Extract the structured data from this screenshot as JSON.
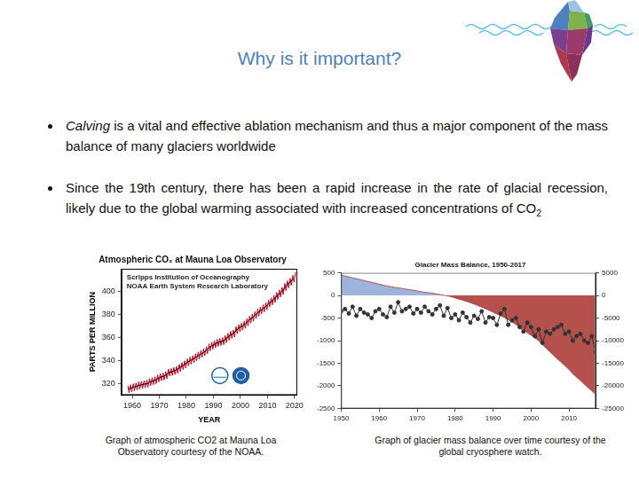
{
  "slide": {
    "title": "Why is it important?",
    "bullets": [
      [
        {
          "text": "Calving",
          "italic": true
        },
        {
          "text": " is a vital and effective ablation mechanism and thus a major component of the mass balance of many glaciers worldwide"
        }
      ],
      [
        {
          "text": "Since the 19th century, there has been a rapid increase in the rate of glacial recession, likely due to the global warming associated with increased concentrations of CO"
        },
        {
          "text": "2",
          "subscript": true
        }
      ]
    ],
    "captions": [
      "Graph of atmospheric CO2 at Mauna Loa Observatory courtesy of the NOAA.",
      "Graph of glacier mass balance over time courtesy of the global cryosphere watch."
    ]
  },
  "chart_data": [
    {
      "type": "line",
      "title": "Atmospheric CO₂ at Mauna Loa Observatory",
      "annotations": [
        "Scripps Institution of Oceanography",
        "NOAA Earth System Research Laboratory"
      ],
      "x_label": "YEAR",
      "y_label": "PARTS PER MILLION",
      "xlim": [
        1956,
        2021
      ],
      "xticks": [
        1960,
        1970,
        1980,
        1990,
        2000,
        2010,
        2020
      ],
      "ylim": [
        310,
        420
      ],
      "yticks": [
        320,
        340,
        360,
        380,
        400
      ],
      "grid": false,
      "series": [
        {
          "color": "#d0021b",
          "marker": "none",
          "line_style": "solid",
          "x": [
            1958.4,
            1958.8,
            1959.4,
            1959.8,
            1960.4,
            1960.8,
            1961.4,
            1961.8,
            1962.4,
            1962.8,
            1963.4,
            1963.8,
            1964.4,
            1964.8,
            1965.4,
            1965.8,
            1966.4,
            1966.8,
            1967.4,
            1967.8,
            1968.4,
            1968.8,
            1969.4,
            1969.8,
            1970.4,
            1970.8,
            1971.4,
            1971.8,
            1972.4,
            1972.8,
            1973.4,
            1973.8,
            1974.4,
            1974.8,
            1975.4,
            1975.8,
            1976.4,
            1976.8,
            1977.4,
            1977.8,
            1978.4,
            1978.8,
            1979.4,
            1979.8,
            1980.4,
            1980.8,
            1981.4,
            1981.8,
            1982.4,
            1982.8,
            1983.4,
            1983.8,
            1984.4,
            1984.8,
            1985.4,
            1985.8,
            1986.4,
            1986.8,
            1987.4,
            1987.8,
            1988.4,
            1988.8,
            1989.4,
            1989.8,
            1990.4,
            1990.8,
            1991.4,
            1991.8,
            1992.4,
            1992.8,
            1993.4,
            1993.8,
            1994.4,
            1994.8,
            1995.4,
            1995.8,
            1996.4,
            1996.8,
            1997.4,
            1997.8,
            1998.4,
            1998.8,
            1999.4,
            1999.8,
            2000.4,
            2000.8,
            2001.4,
            2001.8,
            2002.4,
            2002.8,
            2003.4,
            2003.8,
            2004.4,
            2004.8,
            2005.4,
            2005.8,
            2006.4,
            2006.8,
            2007.4,
            2007.8,
            2008.4,
            2008.8,
            2009.4,
            2009.8,
            2010.4,
            2010.8,
            2011.4,
            2011.8,
            2012.4,
            2012.8,
            2013.4,
            2013.8,
            2014.4,
            2014.8,
            2015.4,
            2015.8,
            2016.4,
            2016.8,
            2017.4,
            2017.8,
            2018.4,
            2018.8,
            2019.4,
            2019.8,
            2020.4
          ],
          "values": [
            318.3,
            312.1,
            319.0,
            312.8,
            319.9,
            313.7,
            320.6,
            314.4,
            321.5,
            315.3,
            322.0,
            315.8,
            322.6,
            316.4,
            323.0,
            316.8,
            324.4,
            318.2,
            325.2,
            319.0,
            326.0,
            319.8,
            327.6,
            321.4,
            328.7,
            322.5,
            329.3,
            323.1,
            330.5,
            324.3,
            332.7,
            326.5,
            333.2,
            327.0,
            334.1,
            327.9,
            335.0,
            328.8,
            336.8,
            330.6,
            338.4,
            332.2,
            339.8,
            333.6,
            341.7,
            335.5,
            343.1,
            336.9,
            344.4,
            338.2,
            346.0,
            339.8,
            347.6,
            341.4,
            349.0,
            342.8,
            350.4,
            344.2,
            352.2,
            346.0,
            354.6,
            348.4,
            356.1,
            349.9,
            357.4,
            351.2,
            358.6,
            352.4,
            359.4,
            353.2,
            360.1,
            353.9,
            361.8,
            355.6,
            363.8,
            357.6,
            365.6,
            359.4,
            366.7,
            360.5,
            369.7,
            363.5,
            371.4,
            365.2,
            372.7,
            366.5,
            374.3,
            368.1,
            376.5,
            370.3,
            378.8,
            372.6,
            380.5,
            374.3,
            382.8,
            376.6,
            384.9,
            378.7,
            386.8,
            380.6,
            388.6,
            382.4,
            390.4,
            384.2,
            392.9,
            386.7,
            394.7,
            388.5,
            396.9,
            390.7,
            399.5,
            393.3,
            401.6,
            395.4,
            403.8,
            397.6,
            407.2,
            401.0,
            409.5,
            403.3,
            411.7,
            405.5,
            414.4,
            408.2,
            416.9
          ]
        },
        {
          "color": "#000000",
          "marker": "none",
          "line_style": "solid",
          "x": [
            1958.5,
            1959.5,
            1960.5,
            1961.5,
            1962.5,
            1963.5,
            1964.5,
            1965.5,
            1966.5,
            1967.5,
            1968.5,
            1969.5,
            1970.5,
            1971.5,
            1972.5,
            1973.5,
            1974.5,
            1975.5,
            1976.5,
            1977.5,
            1978.5,
            1979.5,
            1980.5,
            1981.5,
            1982.5,
            1983.5,
            1984.5,
            1985.5,
            1986.5,
            1987.5,
            1988.5,
            1989.5,
            1990.5,
            1991.5,
            1992.5,
            1993.5,
            1994.5,
            1995.5,
            1996.5,
            1997.5,
            1998.5,
            1999.5,
            2000.5,
            2001.5,
            2002.5,
            2003.5,
            2004.5,
            2005.5,
            2006.5,
            2007.5,
            2008.5,
            2009.5,
            2010.5,
            2011.5,
            2012.5,
            2013.5,
            2014.5,
            2015.5,
            2016.5,
            2017.5,
            2018.5,
            2019.5
          ],
          "values": [
            315.3,
            316.0,
            316.9,
            317.6,
            318.5,
            319.0,
            319.6,
            320.0,
            321.4,
            322.2,
            323.0,
            324.6,
            325.7,
            326.3,
            327.5,
            329.7,
            330.2,
            331.1,
            332.0,
            333.8,
            335.4,
            336.8,
            338.7,
            340.1,
            341.4,
            343.0,
            344.6,
            346.0,
            347.4,
            349.2,
            351.6,
            353.1,
            354.4,
            355.6,
            356.4,
            357.1,
            358.8,
            360.8,
            362.6,
            363.7,
            366.7,
            368.4,
            369.7,
            371.3,
            373.5,
            375.8,
            377.5,
            379.8,
            381.9,
            383.8,
            385.6,
            387.4,
            389.9,
            391.7,
            393.9,
            396.5,
            398.6,
            400.8,
            404.2,
            406.5,
            408.7,
            411.4
          ]
        }
      ]
    },
    {
      "type": "line",
      "title": "Glacier Mass Balance, 1950-2017",
      "x": [
        1950,
        1951,
        1952,
        1953,
        1954,
        1955,
        1956,
        1957,
        1958,
        1959,
        1960,
        1961,
        1962,
        1963,
        1964,
        1965,
        1966,
        1967,
        1968,
        1969,
        1970,
        1971,
        1972,
        1973,
        1974,
        1975,
        1976,
        1977,
        1978,
        1979,
        1980,
        1981,
        1982,
        1983,
        1984,
        1985,
        1986,
        1987,
        1988,
        1989,
        1990,
        1991,
        1992,
        1993,
        1994,
        1995,
        1996,
        1997,
        1998,
        1999,
        2000,
        2001,
        2002,
        2003,
        2004,
        2005,
        2006,
        2007,
        2008,
        2009,
        2010,
        2011,
        2012,
        2013,
        2014,
        2015,
        2016,
        2017
      ],
      "xlim": [
        1950,
        2017
      ],
      "xticks": [
        1950,
        1960,
        1970,
        1980,
        1990,
        2000,
        2010
      ],
      "ylim": [
        -2500,
        500
      ],
      "yticks": [
        500,
        0,
        -500,
        -1000,
        -1500,
        -2000,
        -2500
      ],
      "y2lim": [
        -25000,
        5000
      ],
      "y2ticks": [
        5000,
        0,
        -5000,
        -10000,
        -15000,
        -20000,
        -25000
      ],
      "grid": false,
      "series": [
        {
          "type": "area",
          "axis": "y2",
          "color": "#a8322d",
          "marker": "none",
          "line_style": "solid",
          "values": [
            4500,
            4300,
            4100,
            3900,
            3700,
            3500,
            3300,
            3100,
            2900,
            2700,
            2500,
            2300,
            2100,
            1950,
            1800,
            1700,
            1550,
            1400,
            1300,
            1150,
            1000,
            850,
            700,
            600,
            500,
            350,
            200,
            50,
            -100,
            -300,
            -550,
            -800,
            -1050,
            -1300,
            -1600,
            -1900,
            -2250,
            -2600,
            -2950,
            -3300,
            -3700,
            -4100,
            -4500,
            -4900,
            -5400,
            -5900,
            -6400,
            -6950,
            -7650,
            -8250,
            -8800,
            -9400,
            -10000,
            -10900,
            -11700,
            -12500,
            -13300,
            -14100,
            -14800,
            -15600,
            -16400,
            -17300,
            -18100,
            -18800,
            -19600,
            -20400,
            -21100,
            -21900
          ]
        },
        {
          "type": "line",
          "color": "#333333",
          "marker": "circle",
          "line_style": "solid",
          "values": [
            -350,
            -300,
            -400,
            -250,
            -450,
            -300,
            -380,
            -420,
            -500,
            -350,
            -300,
            -420,
            -480,
            -250,
            -380,
            -150,
            -350,
            -300,
            -250,
            -400,
            -300,
            -380,
            -250,
            -350,
            -420,
            -300,
            -220,
            -450,
            -280,
            -500,
            -420,
            -550,
            -380,
            -480,
            -600,
            -450,
            -520,
            -350,
            -600,
            -480,
            -500,
            -650,
            -400,
            -300,
            -650,
            -550,
            -500,
            -700,
            -800,
            -600,
            -700,
            -900,
            -750,
            -1050,
            -800,
            -850,
            -750,
            -700,
            -650,
            -850,
            -800,
            -1000,
            -900,
            -850,
            -1000,
            -1050,
            -900,
            -1250
          ]
        }
      ]
    }
  ]
}
